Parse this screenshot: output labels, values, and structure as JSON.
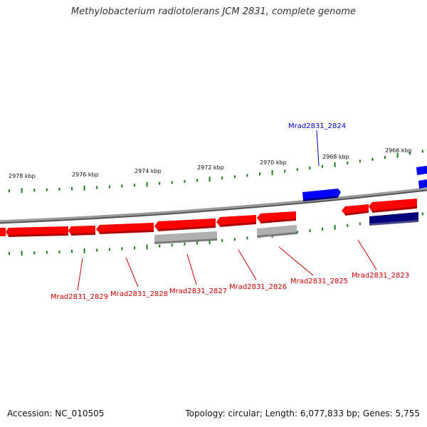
{
  "title": "Methylobacterium radiotolerans JCM 2831, complete genome",
  "footer": {
    "accession": "Accession: NC_010505",
    "summary": "Topology: circular; Length: 6,077,833 bp; Genes: 5,755"
  },
  "colors": {
    "forward_gene": "#ff0000",
    "reverse_gene_highlight": "#0000ff",
    "other_gene": "#b0b0b0",
    "dark_gene": "#00007a",
    "backbone": "#8a8a8a",
    "tick": "#1a7a1a"
  },
  "scale_labels": [
    "2978 kbp",
    "2976 kbp",
    "2974 kbp",
    "2972 kbp",
    "2970 kbp",
    "2968 kbp",
    "2966 kbp"
  ],
  "gene_labels": {
    "top": "Mrad2831_2824",
    "bottom": [
      "Mrad2831_2829",
      "Mrad2831_2828",
      "Mrad2831_2827",
      "Mrad2831_2826",
      "Mrad2831_2825",
      "Mrad2831_2823"
    ]
  }
}
